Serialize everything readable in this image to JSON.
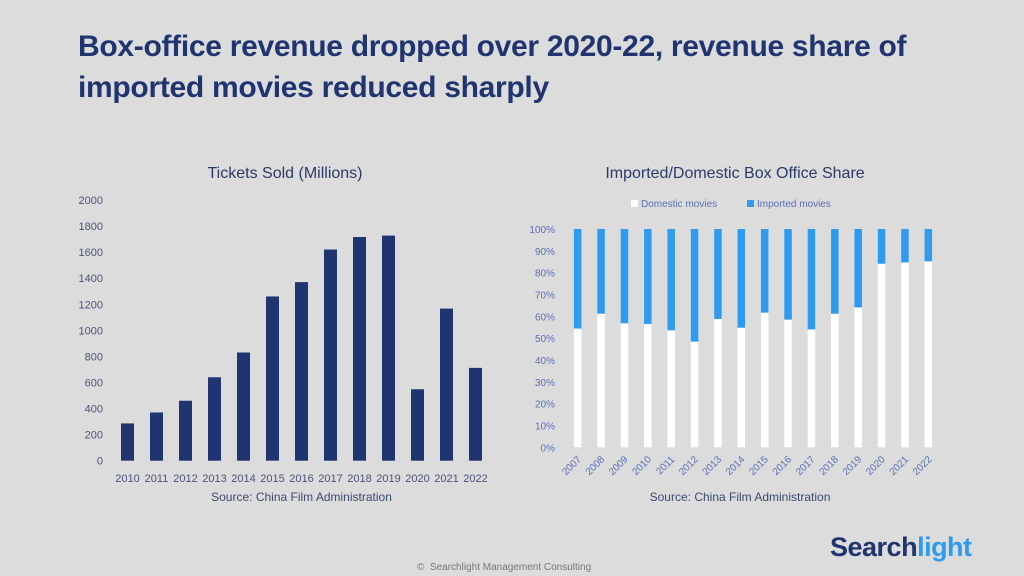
{
  "headline": "Box-office revenue dropped over 2020-22, revenue share of imported movies reduced sharply",
  "footer": {
    "copyright_symbol": "©",
    "text": "Searchlight Management Consulting"
  },
  "logo": {
    "part1": "Search",
    "part2": "light"
  },
  "colors": {
    "title": "#1f3470",
    "bar_navy": "#1f3470",
    "imported_blue": "#2e9bf0",
    "domestic_white": "#ffffff"
  },
  "chart_data": [
    {
      "type": "bar",
      "title": "Tickets Sold (Millions)",
      "xlabel": "Source: China Film Administration",
      "ylabel": "",
      "categories": [
        "2010",
        "2011",
        "2012",
        "2013",
        "2014",
        "2015",
        "2016",
        "2017",
        "2018",
        "2019",
        "2020",
        "2021",
        "2022"
      ],
      "values": [
        286,
        370,
        460,
        640,
        830,
        1260,
        1370,
        1620,
        1716,
        1727,
        548,
        1167,
        712
      ],
      "ylim": [
        0,
        2000
      ],
      "yticks": [
        0,
        200,
        400,
        600,
        800,
        1000,
        1200,
        1400,
        1600,
        1800,
        2000
      ],
      "grid": false,
      "legend": "none"
    },
    {
      "type": "bar",
      "stacked": true,
      "title": "Imported/Domestic Box Office Share",
      "xlabel": "Source: China Film Administration",
      "ylabel": "",
      "categories": [
        "2007",
        "2008",
        "2009",
        "2010",
        "2011",
        "2012",
        "2013",
        "2014",
        "2015",
        "2016",
        "2017",
        "2018",
        "2019",
        "2020",
        "2021",
        "2022"
      ],
      "series": [
        {
          "name": "Domestic movies",
          "values": [
            54.4,
            61.2,
            56.8,
            56.5,
            53.6,
            48.4,
            58.8,
            54.8,
            61.7,
            58.5,
            54.0,
            61.2,
            64.1,
            84.1,
            84.7,
            85.2
          ]
        },
        {
          "name": "Imported movies",
          "values": [
            45.6,
            38.8,
            43.2,
            43.5,
            46.4,
            51.6,
            41.2,
            45.2,
            38.3,
            41.5,
            46.0,
            38.8,
            35.9,
            15.9,
            15.3,
            14.8
          ]
        }
      ],
      "ylim": [
        0,
        100
      ],
      "yticks": [
        "0%",
        "10%",
        "20%",
        "30%",
        "40%",
        "50%",
        "60%",
        "70%",
        "80%",
        "90%",
        "100%"
      ],
      "grid": false,
      "legend": "top"
    }
  ]
}
